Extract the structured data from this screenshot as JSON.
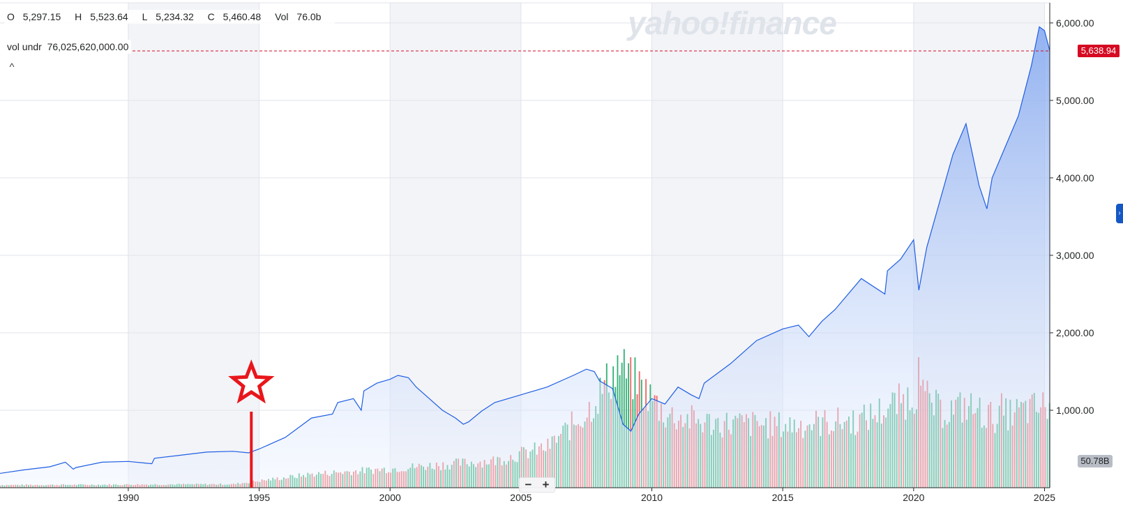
{
  "header": {
    "ohlc": [
      {
        "label": "O",
        "value": "5,297.15"
      },
      {
        "label": "H",
        "value": "5,523.64"
      },
      {
        "label": "L",
        "value": "5,234.32"
      },
      {
        "label": "C",
        "value": "5,460.48"
      },
      {
        "label": "Vol",
        "value": "76.0b"
      }
    ],
    "vol_undr_label": "vol undr",
    "vol_undr_value": "76,025,620,000.00",
    "collapse_glyph": "^"
  },
  "watermark": "yahoo!finance",
  "current_price_badge": "5,638.94",
  "volume_badge": "50.78B",
  "zoom": {
    "minus": "−",
    "plus": "+"
  },
  "side_tab_glyph": "›",
  "colors": {
    "price_line": "#1f5ee3",
    "area_top": "#7ba2ef",
    "area_bottom": "#eef4ff",
    "volume_up": "#37b27a",
    "volume_down": "#ee6b6b",
    "current_price": "#d60a22",
    "annotation": "#e8161b",
    "shaded_band": "#f3f4f8",
    "grid": "#e1e3ea"
  },
  "chart_data": {
    "type": "area",
    "series": [
      {
        "x": [
          1985,
          1986,
          1987,
          1987.6,
          1987.9,
          1988,
          1989,
          1990,
          1990.6,
          1990.9,
          1991,
          1992,
          1993,
          1994,
          1994.6,
          1995,
          1996,
          1997,
          1997.8,
          1998,
          1998.6,
          1998.9,
          1999,
          1999.5,
          2000,
          2000.3,
          2000.7,
          2001,
          2001.5,
          2002,
          2002.5,
          2002.8,
          2003,
          2003.5,
          2004,
          2005,
          2006,
          2007,
          2007.5,
          2007.8,
          2008,
          2008.5,
          2008.9,
          2009.2,
          2009.5,
          2010,
          2010.5,
          2011,
          2011.5,
          2011.8,
          2012,
          2013,
          2014,
          2015,
          2015.6,
          2016,
          2016.5,
          2017,
          2018,
          2018.9,
          2019,
          2019.5,
          2020,
          2020.2,
          2020.5,
          2021,
          2021.5,
          2022,
          2022.5,
          2022.8,
          2023,
          2023.5,
          2024,
          2024.5,
          2024.8,
          2025,
          2025.2
        ],
        "y": [
          180,
          230,
          270,
          330,
          240,
          260,
          330,
          340,
          320,
          310,
          380,
          420,
          460,
          470,
          450,
          500,
          650,
          900,
          950,
          1100,
          1150,
          1000,
          1250,
          1350,
          1400,
          1450,
          1420,
          1300,
          1150,
          1000,
          900,
          820,
          850,
          990,
          1100,
          1200,
          1300,
          1450,
          1530,
          1500,
          1380,
          1280,
          820,
          730,
          950,
          1150,
          1080,
          1300,
          1200,
          1150,
          1350,
          1600,
          1900,
          2050,
          2100,
          1950,
          2150,
          2300,
          2700,
          2500,
          2800,
          2950,
          3200,
          2550,
          3100,
          3700,
          4300,
          4700,
          3900,
          3600,
          4000,
          4400,
          4800,
          5450,
          5950,
          5900,
          5640
        ],
        "fill": "area"
      },
      {
        "name": "Volume",
        "type": "bar",
        "x_range": [
          1985,
          2025.2
        ],
        "volume_ylim_billion": [
          0,
          50
        ],
        "anchors_billion": [
          [
            1985,
            1.0
          ],
          [
            1994,
            1.3
          ],
          [
            1997,
            5
          ],
          [
            2000,
            7
          ],
          [
            2004,
            10
          ],
          [
            2006,
            15
          ],
          [
            2007.5,
            28
          ],
          [
            2008.7,
            45
          ],
          [
            2009.5,
            38
          ],
          [
            2010.5,
            27
          ],
          [
            2012,
            24
          ],
          [
            2015,
            23
          ],
          [
            2018,
            25
          ],
          [
            2020.2,
            35
          ],
          [
            2021,
            28
          ],
          [
            2022,
            30
          ],
          [
            2023,
            26
          ],
          [
            2025,
            30
          ]
        ],
        "spikes_billion": [
          [
            2008.8,
            45
          ],
          [
            2009.2,
            47
          ],
          [
            2020.2,
            47
          ],
          [
            2022.2,
            34
          ],
          [
            2023.3,
            34
          ]
        ]
      }
    ],
    "x_ticks": [
      "1990",
      "1995",
      "2000",
      "2005",
      "2010",
      "2015",
      "2020",
      "2025"
    ],
    "x_tick_values": [
      1990,
      1995,
      2000,
      2005,
      2010,
      2015,
      2020,
      2025
    ],
    "y_ticks": [
      "1,000.00",
      "2,000.00",
      "3,000.00",
      "4,000.00",
      "5,000.00",
      "6,000.00"
    ],
    "y_tick_values": [
      1000,
      2000,
      3000,
      4000,
      5000,
      6000
    ],
    "xlim": [
      1985.1,
      2025.2
    ],
    "ylim": [
      0,
      6260
    ],
    "current_price": 5638.94,
    "annotation": {
      "kind": "star-marker",
      "x": 1994.7
    }
  }
}
